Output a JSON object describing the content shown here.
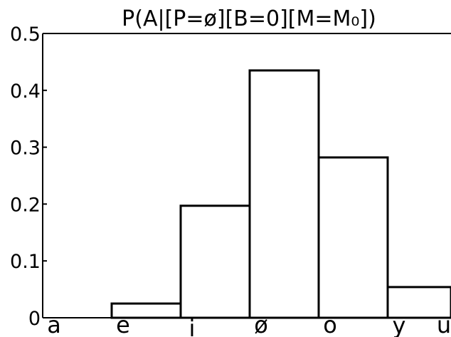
{
  "chart_data": {
    "type": "bar",
    "title": "P(A|[P=ø][B=0][M=M₀])",
    "xlabel": "",
    "ylabel": "",
    "categories": [
      "a",
      "e",
      "i",
      "ø",
      "o",
      "y",
      "u"
    ],
    "values": [
      0.0,
      0.025,
      0.197,
      0.435,
      0.282,
      0.054,
      0.002
    ],
    "ylim": [
      0,
      0.5
    ],
    "yticks": [
      0,
      0.1,
      0.2,
      0.3,
      0.4,
      0.5
    ],
    "ytick_labels": [
      "0",
      "0.1",
      "0.2",
      "0.3",
      "0.4",
      "0.5"
    ],
    "grid": false,
    "bar_fill": "#ffffff",
    "bar_stroke": "#000000"
  }
}
